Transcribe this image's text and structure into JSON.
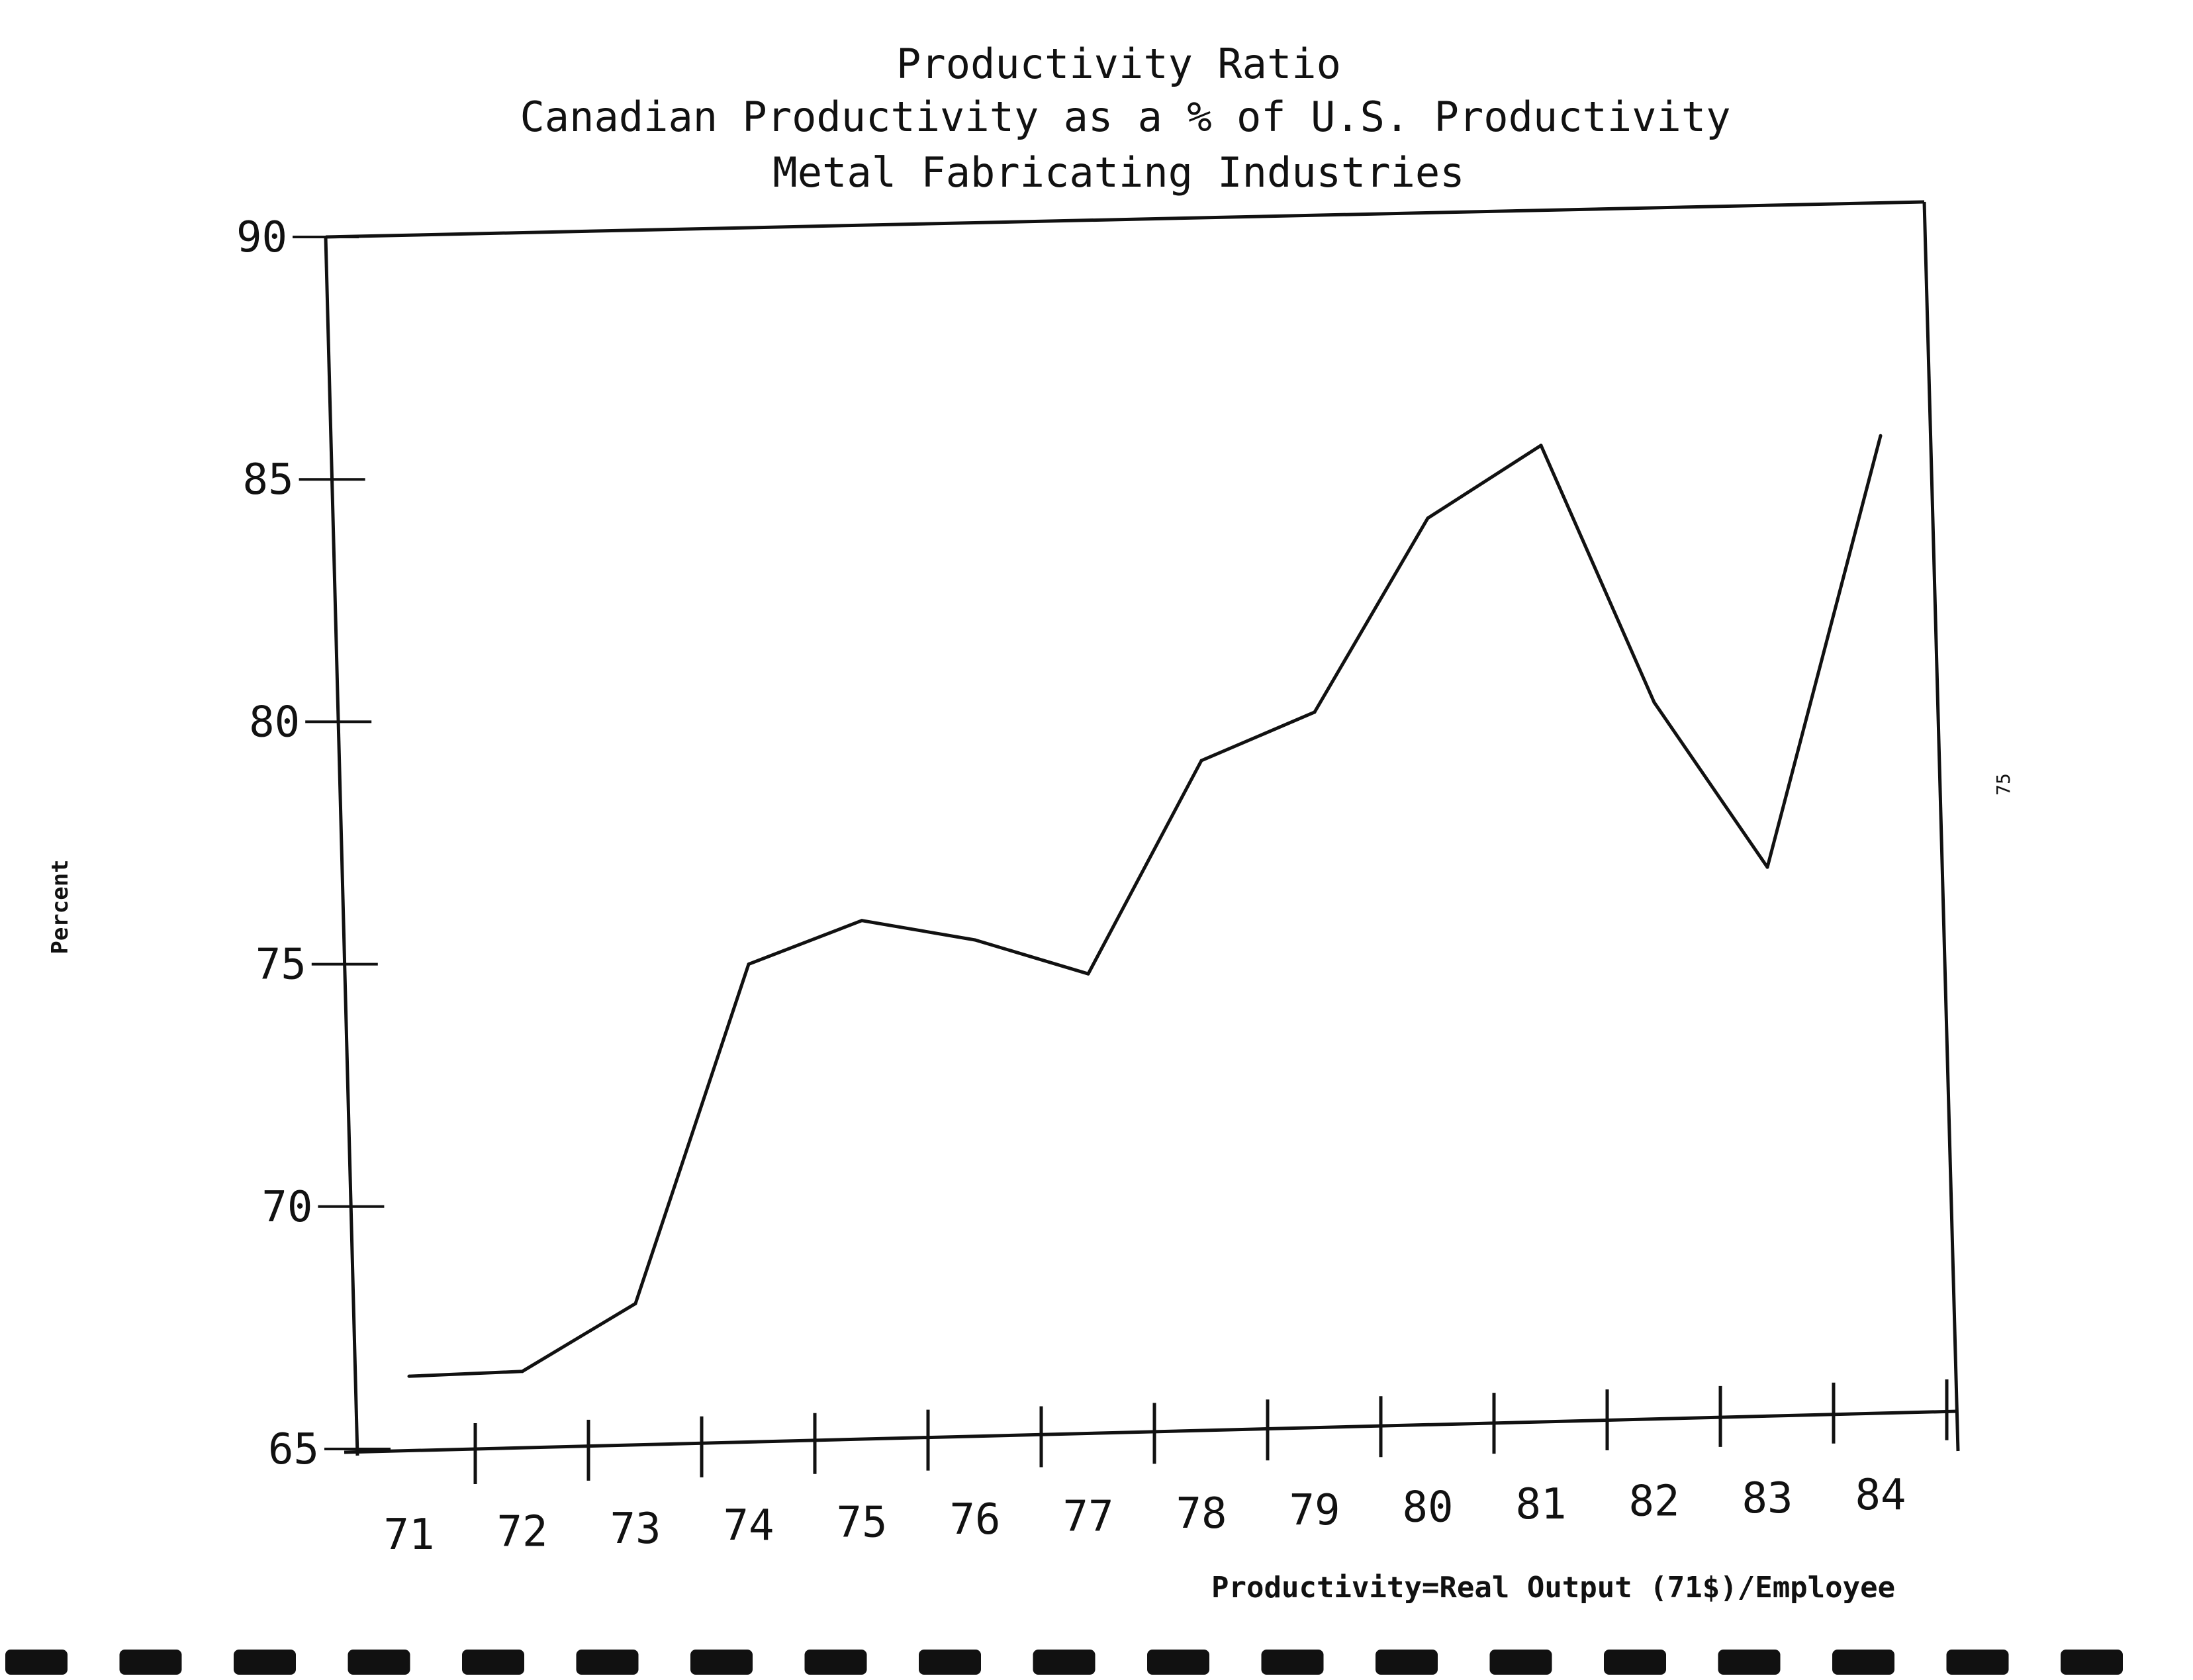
{
  "chart_data": {
    "type": "line",
    "title_lines": [
      "Productivity Ratio",
      "Canadian Productivity as a % of U.S. Productivity",
      "Metal Fabricating Industries"
    ],
    "ylabel": "Percent",
    "xlabel": "",
    "note": "Productivity=Real Output (71$)/Employee",
    "x_tick_labels": [
      "71",
      "72",
      "73",
      "74",
      "75",
      "76",
      "77",
      "78",
      "79",
      "80",
      "81",
      "82",
      "83",
      "84"
    ],
    "y_ticks": [
      65,
      70,
      75,
      80,
      85,
      90
    ],
    "ylim": [
      65,
      90
    ],
    "grid": false,
    "legend": "none",
    "margin_label": "75",
    "series": [
      {
        "x": [
          71,
          72,
          73,
          74,
          75,
          76,
          77,
          78,
          79,
          80,
          81,
          82,
          83,
          84
        ],
        "values": [
          66.5,
          66.6,
          68.0,
          75.0,
          75.9,
          75.5,
          74.8,
          79.2,
          80.2,
          84.2,
          85.7,
          80.4,
          77.0,
          85.9
        ]
      }
    ],
    "line_color": "#111111"
  }
}
